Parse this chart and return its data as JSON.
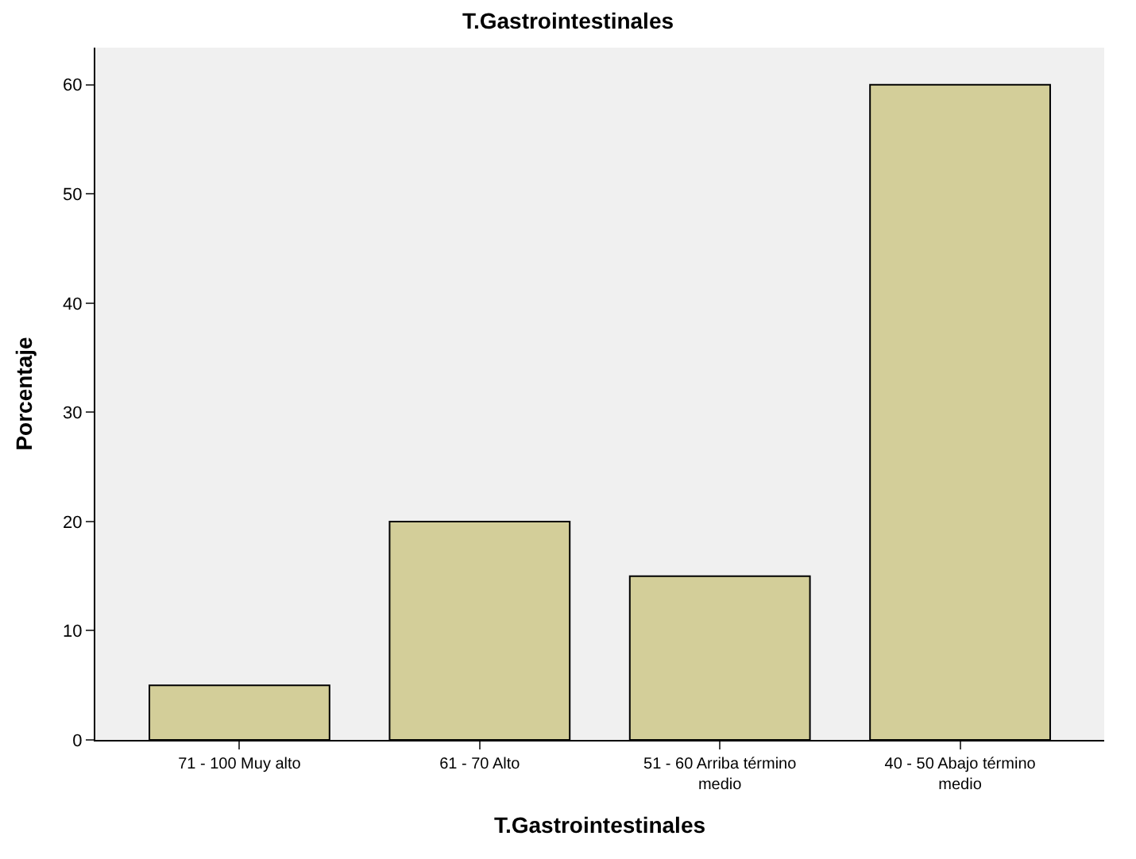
{
  "chart_data": {
    "type": "bar",
    "title": "T.Gastrointestinales",
    "xlabel": "T.Gastrointestinales",
    "ylabel": "Porcentaje",
    "categories": [
      "71 - 100 Muy alto",
      "61 - 70 Alto",
      "51 - 60 Arriba término medio",
      "40 - 50 Abajo término medio"
    ],
    "values": [
      5,
      20,
      15,
      60
    ],
    "color": "#d3ce99",
    "ylim": [
      0,
      63.4
    ],
    "yticks": [
      0,
      10,
      20,
      30,
      40,
      50,
      60
    ],
    "grid": false
  }
}
